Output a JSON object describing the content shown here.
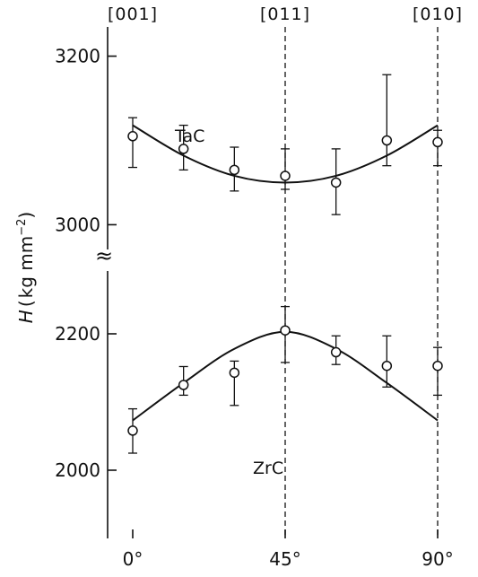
{
  "chart_data": {
    "type": "scatter",
    "xlabel": "",
    "ylabel": "H (kg mm⁻²)",
    "ylabel_parts": {
      "symbol": "H",
      "open": "(",
      "unit": "kg  mm",
      "exp": "−2",
      "close": ")"
    },
    "axis_break": "≈",
    "x_ticks": [
      {
        "value": 0,
        "label": "0°"
      },
      {
        "value": 45,
        "label": "45°"
      },
      {
        "value": 90,
        "label": "90°"
      }
    ],
    "top_labels": [
      {
        "value": 0,
        "label": "[001]"
      },
      {
        "value": 45,
        "label": "[011]"
      },
      {
        "value": 90,
        "label": "[010]"
      }
    ],
    "y_ticks": [
      {
        "value": 3200,
        "label": "3200",
        "panel": "upper"
      },
      {
        "value": 3000,
        "label": "3000",
        "panel": "upper"
      },
      {
        "value": 2200,
        "label": "2200",
        "panel": "lower"
      },
      {
        "value": 2000,
        "label": "2000",
        "panel": "lower"
      }
    ],
    "panels": {
      "upper": {
        "ylim": [
          2960,
          3240
        ]
      },
      "lower": {
        "ylim": [
          1900,
          2300
        ]
      }
    },
    "series": [
      {
        "name": "TaC",
        "panel": "upper",
        "x": [
          0,
          15,
          30,
          45,
          60,
          75,
          90
        ],
        "y": [
          3105,
          3090,
          3065,
          3058,
          3050,
          3100,
          3098
        ],
        "err_low": [
          3068,
          3065,
          3040,
          3042,
          3012,
          3070,
          3070
        ],
        "err_high": [
          3127,
          3118,
          3092,
          3090,
          3090,
          3178,
          3112
        ],
        "fit_x": [
          0,
          15,
          30,
          45,
          60,
          75,
          90
        ],
        "fit_y": [
          3118,
          3082,
          3058,
          3050,
          3058,
          3082,
          3118
        ]
      },
      {
        "name": "ZrC",
        "panel": "lower",
        "x": [
          0,
          15,
          30,
          45,
          60,
          75,
          90
        ],
        "y": [
          2058,
          2125,
          2143,
          2205,
          2173,
          2153,
          2153
        ],
        "err_low": [
          2025,
          2110,
          2095,
          2158,
          2155,
          2122,
          2110
        ],
        "err_high": [
          2090,
          2152,
          2160,
          2240,
          2197,
          2197,
          2180
        ],
        "fit_x": [
          0,
          15,
          30,
          45,
          60,
          75,
          90
        ],
        "fit_y": [
          2073,
          2128,
          2178,
          2203,
          2178,
          2128,
          2073
        ]
      }
    ],
    "grid": false
  }
}
